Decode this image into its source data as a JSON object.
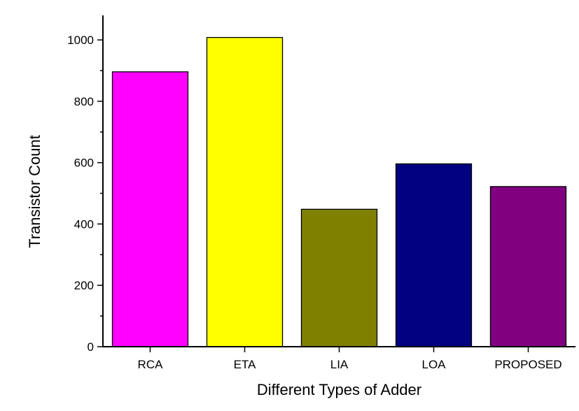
{
  "chart_data": {
    "type": "bar",
    "title": "",
    "xlabel": "Different Types of Adder",
    "ylabel": "Transistor Count",
    "categories": [
      "RCA",
      "ETA",
      "LIA",
      "LOA",
      "PROPOSED"
    ],
    "values": [
      896,
      1008,
      448,
      596,
      522
    ],
    "bar_colors": [
      "#FF00FF",
      "#FFFF00",
      "#808000",
      "#000080",
      "#800080"
    ],
    "ylim": [
      0,
      1080
    ],
    "yticks": [
      0,
      200,
      400,
      600,
      800,
      1000
    ],
    "y_minor_step": 100,
    "grid": false,
    "legend": "none"
  }
}
